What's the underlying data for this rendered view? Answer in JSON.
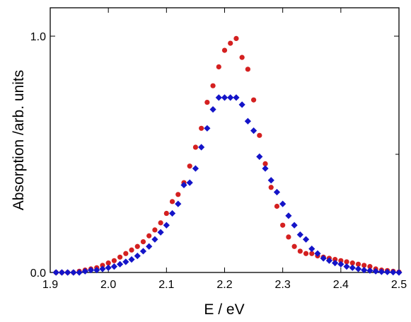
{
  "chart_data": {
    "type": "scatter",
    "xlabel": "E / eV",
    "ylabel": "Absorption /arb. units",
    "xlim": [
      1.9,
      2.5
    ],
    "ylim": [
      0.0,
      1.12
    ],
    "x_ticks": [
      "1.9",
      "2.0",
      "2.1",
      "2.2",
      "2.3",
      "2.4",
      "2.5"
    ],
    "x_tick_values": [
      1.9,
      2.0,
      2.1,
      2.2,
      2.3,
      2.4,
      2.5
    ],
    "y_ticks": [
      "0.0",
      "1.0"
    ],
    "y_tick_values": [
      0.0,
      1.0
    ],
    "y_minor_ticks": [
      0.5
    ],
    "grid": false,
    "series": [
      {
        "marker": "circle",
        "color": "#d42020",
        "x": [
          1.91,
          1.92,
          1.93,
          1.94,
          1.95,
          1.96,
          1.97,
          1.98,
          1.99,
          2.0,
          2.01,
          2.02,
          2.03,
          2.04,
          2.05,
          2.06,
          2.07,
          2.08,
          2.09,
          2.1,
          2.11,
          2.12,
          2.13,
          2.14,
          2.15,
          2.16,
          2.17,
          2.18,
          2.19,
          2.2,
          2.21,
          2.22,
          2.23,
          2.24,
          2.25,
          2.26,
          2.27,
          2.28,
          2.29,
          2.3,
          2.31,
          2.32,
          2.33,
          2.34,
          2.35,
          2.36,
          2.37,
          2.38,
          2.39,
          2.4,
          2.41,
          2.42,
          2.43,
          2.44,
          2.45,
          2.46,
          2.47,
          2.48,
          2.49,
          2.5
        ],
        "y": [
          0.0,
          0.0,
          0.0,
          0.0,
          0.005,
          0.01,
          0.015,
          0.02,
          0.03,
          0.04,
          0.05,
          0.065,
          0.08,
          0.095,
          0.11,
          0.13,
          0.155,
          0.18,
          0.21,
          0.25,
          0.3,
          0.33,
          0.38,
          0.45,
          0.53,
          0.61,
          0.72,
          0.79,
          0.87,
          0.94,
          0.97,
          0.99,
          0.91,
          0.86,
          0.73,
          0.58,
          0.46,
          0.36,
          0.28,
          0.2,
          0.15,
          0.11,
          0.09,
          0.08,
          0.08,
          0.07,
          0.065,
          0.06,
          0.055,
          0.05,
          0.045,
          0.04,
          0.035,
          0.03,
          0.025,
          0.015,
          0.01,
          0.008,
          0.005,
          0.002
        ]
      },
      {
        "marker": "diamond",
        "color": "#1414c8",
        "x": [
          1.91,
          1.92,
          1.93,
          1.94,
          1.95,
          1.96,
          1.97,
          1.98,
          1.99,
          2.0,
          2.01,
          2.02,
          2.03,
          2.04,
          2.05,
          2.06,
          2.07,
          2.08,
          2.09,
          2.1,
          2.11,
          2.12,
          2.13,
          2.14,
          2.15,
          2.16,
          2.17,
          2.18,
          2.19,
          2.2,
          2.21,
          2.22,
          2.23,
          2.24,
          2.25,
          2.26,
          2.27,
          2.28,
          2.29,
          2.3,
          2.31,
          2.32,
          2.33,
          2.34,
          2.35,
          2.36,
          2.37,
          2.38,
          2.39,
          2.4,
          2.41,
          2.42,
          2.43,
          2.44,
          2.45,
          2.46,
          2.47,
          2.48,
          2.49,
          2.5
        ],
        "y": [
          0.0,
          0.0,
          0.0,
          0.0,
          0.0,
          0.005,
          0.01,
          0.01,
          0.015,
          0.02,
          0.025,
          0.035,
          0.045,
          0.055,
          0.07,
          0.09,
          0.11,
          0.14,
          0.17,
          0.2,
          0.25,
          0.29,
          0.37,
          0.38,
          0.44,
          0.53,
          0.61,
          0.69,
          0.74,
          0.74,
          0.74,
          0.74,
          0.71,
          0.64,
          0.6,
          0.49,
          0.44,
          0.39,
          0.34,
          0.29,
          0.24,
          0.2,
          0.16,
          0.14,
          0.1,
          0.08,
          0.06,
          0.05,
          0.04,
          0.035,
          0.025,
          0.02,
          0.015,
          0.01,
          0.008,
          0.005,
          0.003,
          0.002,
          0.001,
          0.0
        ]
      }
    ]
  }
}
